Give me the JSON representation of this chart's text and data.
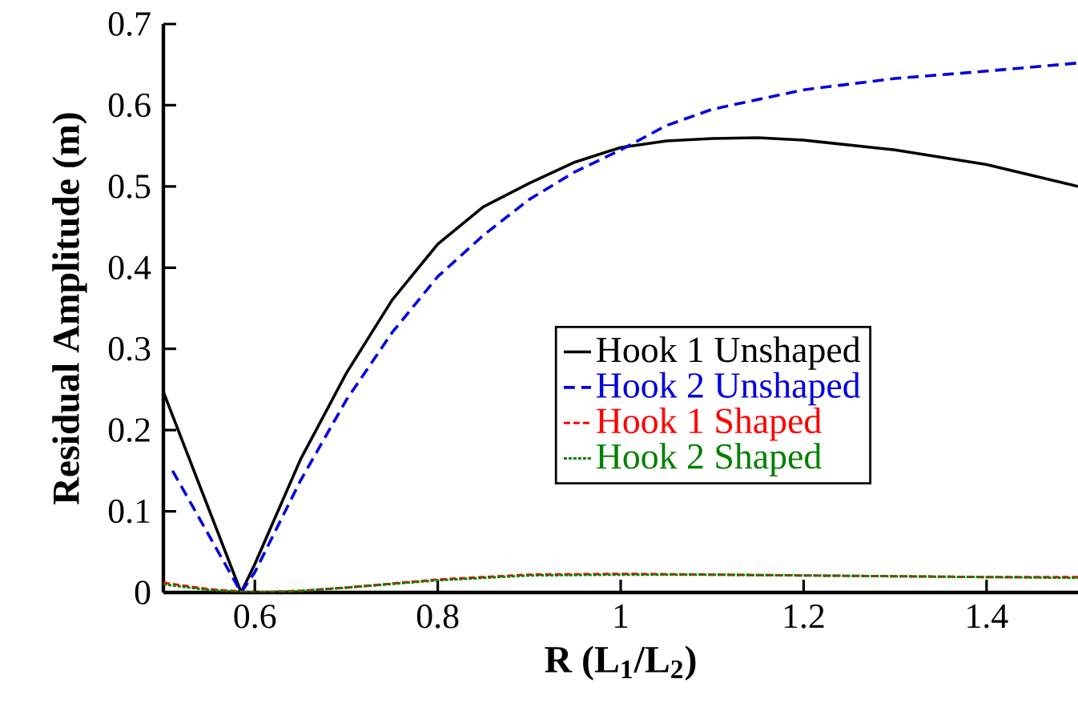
{
  "chart_data": {
    "type": "line",
    "xlabel": "R (L$_{1}$/L$_{2}$)",
    "ylabel": "Residual Amplitude (m)",
    "xlim": [
      0.5,
      1.5
    ],
    "ylim": [
      0,
      0.7
    ],
    "xticks": [
      0.6,
      0.8,
      1,
      1.2,
      1.4
    ],
    "yticks": [
      0,
      0.1,
      0.2,
      0.3,
      0.4,
      0.5,
      0.6,
      0.7
    ],
    "grid": false,
    "legend": "right",
    "marker": "none",
    "series": [
      {
        "name": "Hook 1 Unshaped",
        "color": "#000000",
        "line_style": "solid",
        "x": [
          0.5,
          0.585,
          0.6,
          0.65,
          0.7,
          0.75,
          0.8,
          0.85,
          0.9,
          0.95,
          1.0,
          1.05,
          1.1,
          1.15,
          1.2,
          1.3,
          1.4,
          1.5
        ],
        "values": [
          0.247,
          0,
          0.035,
          0.164,
          0.27,
          0.36,
          0.429,
          0.475,
          0.504,
          0.53,
          0.548,
          0.556,
          0.559,
          0.56,
          0.557,
          0.545,
          0.527,
          0.5
        ]
      },
      {
        "name": "Hook 2 Unshaped",
        "color": "#0000dd",
        "line_style": "dashed",
        "x": [
          0.51,
          0.55,
          0.585,
          0.6,
          0.65,
          0.7,
          0.75,
          0.8,
          0.85,
          0.9,
          0.95,
          1.0,
          1.05,
          1.1,
          1.2,
          1.3,
          1.4,
          1.5
        ],
        "values": [
          0.15,
          0.07,
          0,
          0.025,
          0.138,
          0.237,
          0.32,
          0.389,
          0.44,
          0.484,
          0.518,
          0.545,
          0.575,
          0.595,
          0.619,
          0.633,
          0.642,
          0.652
        ]
      },
      {
        "name": "Hook 1 Shaped",
        "color": "#ff0000",
        "line_style": "dashed",
        "x": [
          0.5,
          0.55,
          0.6,
          0.65,
          0.7,
          0.8,
          0.9,
          1.0,
          1.1,
          1.2,
          1.3,
          1.4,
          1.5
        ],
        "values": [
          0.012,
          0.004,
          0,
          0.002,
          0.006,
          0.016,
          0.022,
          0.023,
          0.022,
          0.021,
          0.02,
          0.019,
          0.019
        ]
      },
      {
        "name": "Hook 2 Shaped",
        "color": "#008000",
        "line_style": "dotted",
        "x": [
          0.5,
          0.55,
          0.6,
          0.65,
          0.7,
          0.8,
          0.9,
          1.0,
          1.1,
          1.2,
          1.3,
          1.4,
          1.5
        ],
        "values": [
          0.01,
          0.003,
          0,
          0.002,
          0.006,
          0.015,
          0.021,
          0.022,
          0.022,
          0.021,
          0.02,
          0.019,
          0.018
        ]
      }
    ]
  }
}
